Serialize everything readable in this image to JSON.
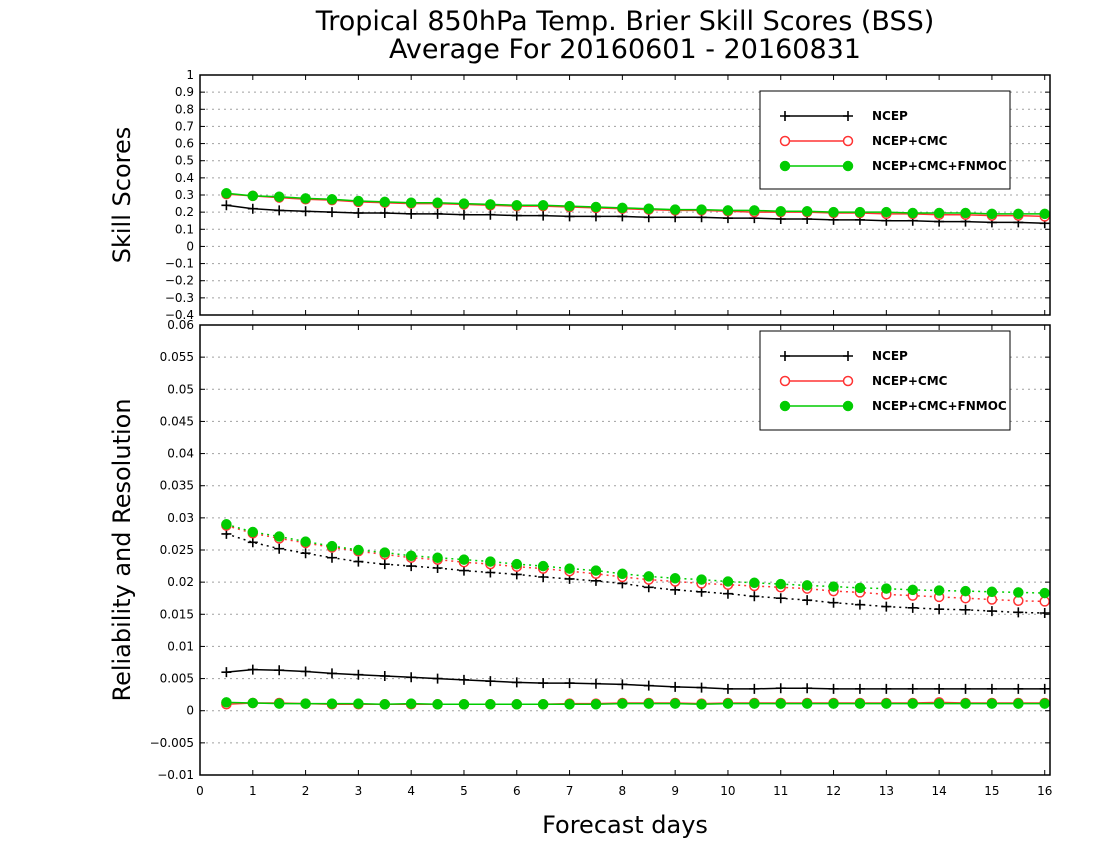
{
  "title_line1": "Tropical 850hPa Temp. Brier Skill Scores (BSS)",
  "title_line2": "Average For 20160601 - 20160831",
  "xlabel": "Forecast days",
  "legend": [
    "NCEP",
    "NCEP+CMC",
    "NCEP+CMC+FNMOC"
  ],
  "colors": {
    "NCEP": "#000000",
    "NCEP+CMC": "#ff3333",
    "NCEP+CMC+FNMOC": "#00cc00",
    "grid": "#a0a0a0"
  },
  "chart_data": [
    {
      "type": "line",
      "ylabel": "Skill Scores",
      "xlim": [
        0,
        16.1
      ],
      "ylim": [
        -0.4,
        1
      ],
      "x_ticks": [
        "0",
        "1",
        "2",
        "3",
        "4",
        "5",
        "6",
        "7",
        "8",
        "9",
        "10",
        "11",
        "12",
        "13",
        "14",
        "15",
        "16"
      ],
      "y_ticks": [
        "1",
        "0.9",
        "0.8",
        "0.7",
        "0.6",
        "0.5",
        "0.4",
        "0.3",
        "0.2",
        "0.1",
        "0",
        "−0.1",
        "−0.2",
        "−0.3",
        "−0.4"
      ],
      "grid": true,
      "legend_position": "top-right",
      "x": [
        0.5,
        1,
        1.5,
        2,
        2.5,
        3,
        3.5,
        4,
        4.5,
        5,
        5.5,
        6,
        6.5,
        7,
        7.5,
        8,
        8.5,
        9,
        9.5,
        10,
        10.5,
        11,
        11.5,
        12,
        12.5,
        13,
        13.5,
        14,
        14.5,
        15,
        15.5,
        16
      ],
      "series": [
        {
          "name": "NCEP",
          "style": "solid",
          "marker": "plus",
          "values": [
            0.24,
            0.22,
            0.21,
            0.205,
            0.2,
            0.195,
            0.195,
            0.19,
            0.19,
            0.185,
            0.185,
            0.18,
            0.18,
            0.175,
            0.175,
            0.175,
            0.17,
            0.17,
            0.17,
            0.165,
            0.165,
            0.16,
            0.16,
            0.155,
            0.155,
            0.15,
            0.15,
            0.145,
            0.145,
            0.14,
            0.14,
            0.135
          ]
        },
        {
          "name": "NCEP+CMC",
          "style": "solid",
          "marker": "open-circle",
          "values": [
            0.305,
            0.295,
            0.285,
            0.275,
            0.27,
            0.26,
            0.255,
            0.25,
            0.25,
            0.245,
            0.24,
            0.235,
            0.235,
            0.23,
            0.225,
            0.22,
            0.215,
            0.21,
            0.21,
            0.205,
            0.2,
            0.2,
            0.2,
            0.195,
            0.195,
            0.19,
            0.19,
            0.185,
            0.185,
            0.18,
            0.18,
            0.175
          ]
        },
        {
          "name": "NCEP+CMC+FNMOC",
          "style": "solid",
          "marker": "filled-circle",
          "values": [
            0.31,
            0.295,
            0.29,
            0.28,
            0.275,
            0.265,
            0.26,
            0.255,
            0.255,
            0.25,
            0.245,
            0.24,
            0.24,
            0.235,
            0.23,
            0.225,
            0.22,
            0.215,
            0.215,
            0.21,
            0.21,
            0.205,
            0.205,
            0.2,
            0.2,
            0.2,
            0.195,
            0.195,
            0.195,
            0.19,
            0.19,
            0.19
          ]
        }
      ]
    },
    {
      "type": "line",
      "ylabel": "Reliability and Resolution",
      "xlim": [
        0,
        16.1
      ],
      "ylim": [
        -0.01,
        0.06
      ],
      "x_ticks": [
        "0",
        "1",
        "2",
        "3",
        "4",
        "5",
        "6",
        "7",
        "8",
        "9",
        "10",
        "11",
        "12",
        "13",
        "14",
        "15",
        "16"
      ],
      "y_ticks": [
        "0.06",
        "0.055",
        "0.05",
        "0.045",
        "0.04",
        "0.035",
        "0.03",
        "0.025",
        "0.02",
        "0.015",
        "0.01",
        "0.005",
        "0",
        "−0.005",
        "−0.01"
      ],
      "grid": true,
      "legend_position": "top-right",
      "x": [
        0.5,
        1,
        1.5,
        2,
        2.5,
        3,
        3.5,
        4,
        4.5,
        5,
        5.5,
        6,
        6.5,
        7,
        7.5,
        8,
        8.5,
        9,
        9.5,
        10,
        10.5,
        11,
        11.5,
        12,
        12.5,
        13,
        13.5,
        14,
        14.5,
        15,
        15.5,
        16
      ],
      "series": [
        {
          "name": "NCEP",
          "quantity": "resolution",
          "style": "dotted",
          "marker": "plus",
          "values": [
            0.0275,
            0.0262,
            0.0252,
            0.0245,
            0.0238,
            0.0232,
            0.0228,
            0.0225,
            0.0222,
            0.0218,
            0.0215,
            0.0212,
            0.0208,
            0.0205,
            0.0202,
            0.0198,
            0.0192,
            0.0188,
            0.0185,
            0.0182,
            0.0178,
            0.0175,
            0.0172,
            0.0168,
            0.0165,
            0.0162,
            0.016,
            0.0158,
            0.0157,
            0.0155,
            0.0153,
            0.0152
          ]
        },
        {
          "name": "NCEP+CMC",
          "quantity": "resolution",
          "style": "dotted",
          "marker": "open-circle",
          "values": [
            0.0288,
            0.0276,
            0.0268,
            0.0261,
            0.0254,
            0.0248,
            0.0243,
            0.0238,
            0.0235,
            0.0231,
            0.0228,
            0.0224,
            0.0221,
            0.0217,
            0.0213,
            0.0208,
            0.0204,
            0.0201,
            0.0198,
            0.0196,
            0.0194,
            0.0192,
            0.019,
            0.0186,
            0.0184,
            0.0181,
            0.0179,
            0.0177,
            0.0175,
            0.0173,
            0.0171,
            0.017
          ]
        },
        {
          "name": "NCEP+CMC+FNMOC",
          "quantity": "resolution",
          "style": "dotted",
          "marker": "filled-circle",
          "values": [
            0.029,
            0.0278,
            0.0271,
            0.0263,
            0.0256,
            0.025,
            0.0246,
            0.0241,
            0.0238,
            0.0235,
            0.0232,
            0.0228,
            0.0225,
            0.0221,
            0.0218,
            0.0213,
            0.0209,
            0.0206,
            0.0204,
            0.0201,
            0.0199,
            0.0197,
            0.0195,
            0.0193,
            0.0191,
            0.019,
            0.0188,
            0.0187,
            0.0186,
            0.0185,
            0.0184,
            0.0183
          ]
        },
        {
          "name": "NCEP",
          "quantity": "reliability",
          "style": "solid",
          "marker": "plus",
          "values": [
            0.006,
            0.0064,
            0.0063,
            0.0061,
            0.0058,
            0.0056,
            0.0054,
            0.0052,
            0.005,
            0.0048,
            0.0046,
            0.0044,
            0.0043,
            0.0043,
            0.0042,
            0.0041,
            0.0039,
            0.0037,
            0.0036,
            0.0034,
            0.0034,
            0.0035,
            0.0035,
            0.0034,
            0.0034,
            0.0034,
            0.0034,
            0.0034,
            0.0034,
            0.0034,
            0.0034,
            0.0034
          ]
        },
        {
          "name": "NCEP+CMC",
          "quantity": "reliability",
          "style": "solid",
          "marker": "open-circle",
          "values": [
            0.001,
            0.0012,
            0.0012,
            0.0011,
            0.001,
            0.001,
            0.001,
            0.001,
            0.001,
            0.001,
            0.001,
            0.001,
            0.001,
            0.0011,
            0.0011,
            0.0012,
            0.0012,
            0.0012,
            0.0011,
            0.0012,
            0.0012,
            0.0012,
            0.0012,
            0.0012,
            0.0012,
            0.0012,
            0.0012,
            0.0013,
            0.0012,
            0.0012,
            0.0012,
            0.0012
          ]
        },
        {
          "name": "NCEP+CMC+FNMOC",
          "quantity": "reliability",
          "style": "solid",
          "marker": "filled-circle",
          "values": [
            0.0013,
            0.0012,
            0.0011,
            0.0011,
            0.0011,
            0.0011,
            0.001,
            0.0011,
            0.001,
            0.001,
            0.001,
            0.001,
            0.001,
            0.001,
            0.001,
            0.0011,
            0.0011,
            0.0011,
            0.001,
            0.0011,
            0.0011,
            0.0011,
            0.0011,
            0.0011,
            0.0011,
            0.0011,
            0.0011,
            0.0011,
            0.0011,
            0.0011,
            0.0011,
            0.0011
          ]
        }
      ]
    }
  ]
}
